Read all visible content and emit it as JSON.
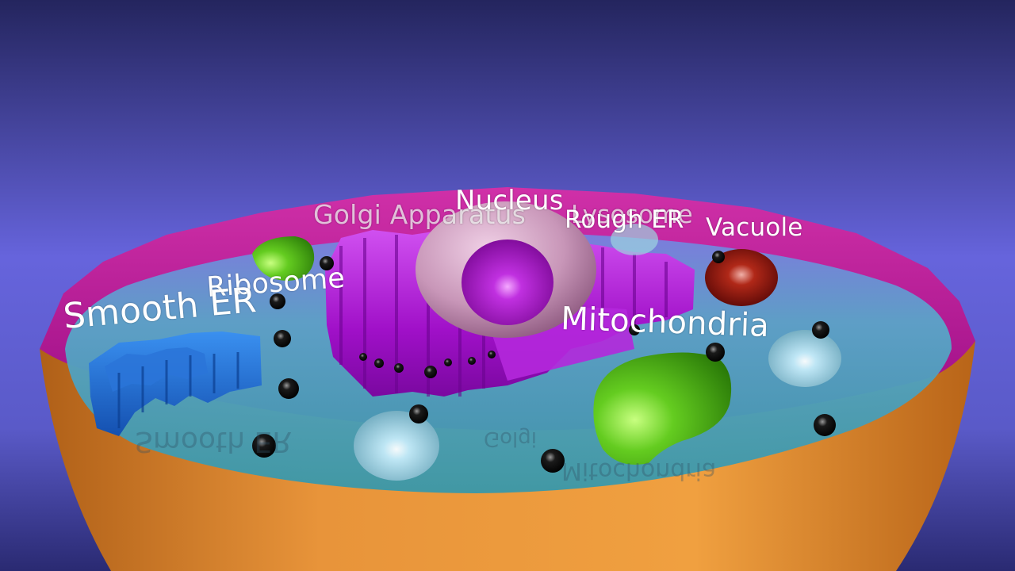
{
  "scene": {
    "type": "3D animal cell cross-section model",
    "colors": {
      "background_top": "#2b2c6e",
      "background_mid": "#6a68e0",
      "membrane_outer": "#e8923a",
      "membrane_rim": "#c4149a",
      "cytoplasm": "#3c9cac",
      "golgi": "#a010c8",
      "nucleus": "#c896b8",
      "nucleolus": "#a018c0",
      "smooth_er": "#1c68d0",
      "mitochondria": "#58c018",
      "vacuole": "#9c1810",
      "lysosome": "#a8d8e8",
      "ribosome": "#111111"
    }
  },
  "labels": {
    "smooth_er": "Smooth ER",
    "ribosome": "Ribosome",
    "golgi": "Golgi Apparatus",
    "nucleus": "Nucleus",
    "lysosome": "Lysosome",
    "rough_er": "Rough ER",
    "vacuole": "Vacuole",
    "mitochondria": "Mitochondria"
  },
  "reflections": {
    "smooth_er": "Smooth ER",
    "mitochondria": "Mitochondria",
    "golgi": "Golgi"
  }
}
